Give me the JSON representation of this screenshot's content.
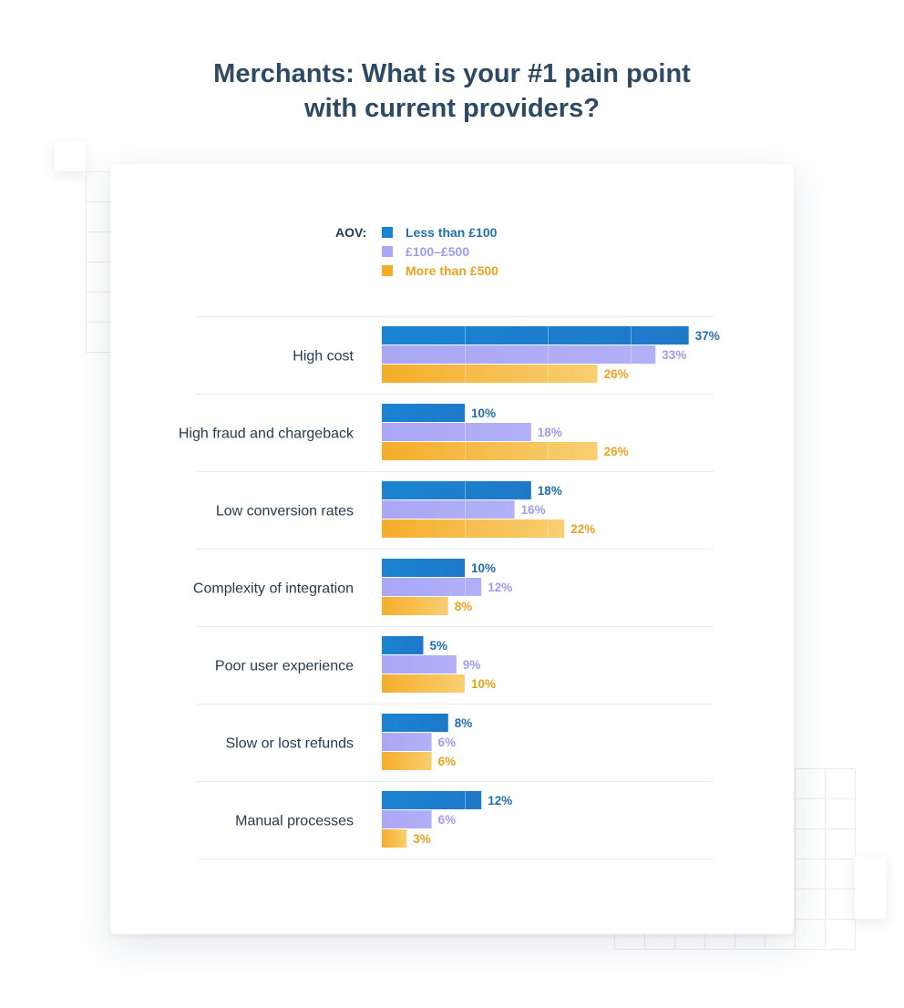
{
  "title_line1": "Merchants: What is your #1 pain point",
  "title_line2": "with current providers?",
  "legend": {
    "title": "AOV:",
    "items": [
      {
        "label": "Less than £100",
        "color": "#1a84d2",
        "text_color": "#1f6fae"
      },
      {
        "label": "£100–£500",
        "color": "#aaa8f5",
        "text_color": "#9d9cf0"
      },
      {
        "label": "More than £500",
        "color": "#f5ad2a",
        "text_color": "#eaa21f"
      }
    ]
  },
  "chart_data": {
    "type": "bar",
    "orientation": "horizontal",
    "title": "Merchants: What is your #1 pain point with current providers?",
    "legend_title": "AOV:",
    "unit": "%",
    "categories": [
      "High cost",
      "High fraud and chargeback",
      "Low conversion rates",
      "Complexity of integration",
      "Poor user experience",
      "Slow or lost refunds",
      "Manual processes"
    ],
    "series": [
      {
        "name": "Less than £100",
        "values": [
          37,
          10,
          18,
          10,
          5,
          8,
          12
        ]
      },
      {
        "name": "£100–£500",
        "values": [
          33,
          18,
          16,
          12,
          9,
          6,
          6
        ]
      },
      {
        "name": "More than £500",
        "values": [
          26,
          26,
          22,
          8,
          10,
          6,
          3
        ]
      }
    ],
    "value_labels": [
      [
        "37%",
        "10%",
        "18%",
        "10%",
        "5%",
        "8%",
        "12%"
      ],
      [
        "33%",
        "18%",
        "16%",
        "12%",
        "9%",
        "6%",
        "6%"
      ],
      [
        "26%",
        "26%",
        "22%",
        "8%",
        "10%",
        "6%",
        "3%"
      ]
    ],
    "xlim": [
      0,
      40
    ],
    "gridlines": [
      10,
      20,
      30
    ],
    "colors": [
      "#1a84d2",
      "#aaa8f5",
      "#f5ad2a"
    ],
    "label_colors": [
      "#1f6fae",
      "#9d9cf0",
      "#eaa21f"
    ],
    "category_label_color": "#243b53",
    "separator_color": "#e8ecf0"
  }
}
